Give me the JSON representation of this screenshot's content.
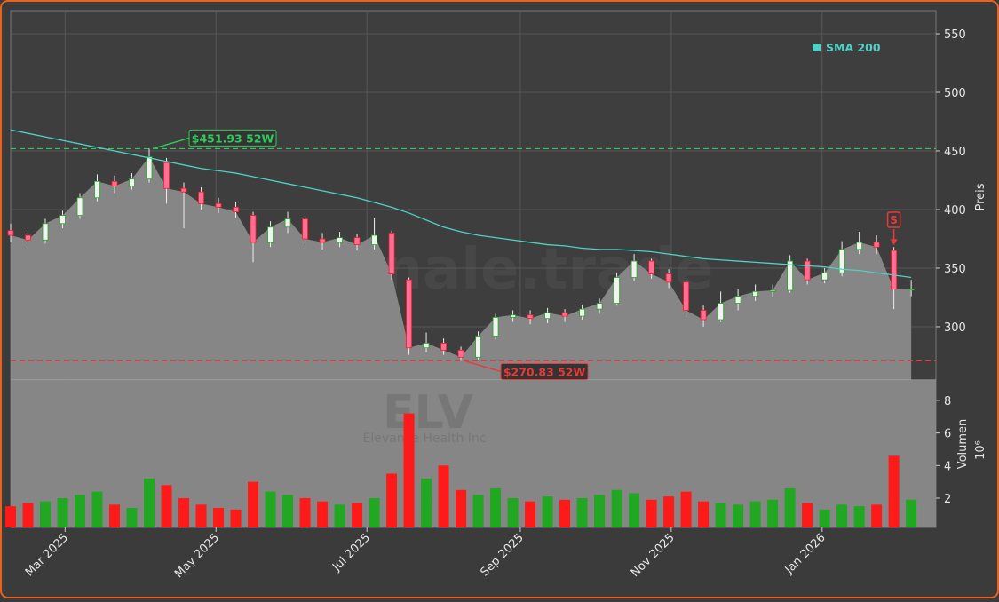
{
  "chart_data": {
    "type": "candlestick",
    "watermark": "forexsignale.trade",
    "ticker": "ELV",
    "company": "Elevance Health Inc",
    "ylabel": "Preis",
    "x": [
      "2025-02-07",
      "2025-02-14",
      "2025-02-21",
      "2025-02-28",
      "2025-03-07",
      "2025-03-14",
      "2025-03-21",
      "2025-03-28",
      "2025-04-04",
      "2025-04-11",
      "2025-04-18",
      "2025-04-25",
      "2025-05-02",
      "2025-05-09",
      "2025-05-16",
      "2025-05-23",
      "2025-05-30",
      "2025-06-06",
      "2025-06-13",
      "2025-06-20",
      "2025-06-27",
      "2025-07-04",
      "2025-07-11",
      "2025-07-18",
      "2025-07-25",
      "2025-08-01",
      "2025-08-08",
      "2025-08-15",
      "2025-08-22",
      "2025-08-29",
      "2025-09-05",
      "2025-09-12",
      "2025-09-19",
      "2025-09-26",
      "2025-10-03",
      "2025-10-10",
      "2025-10-17",
      "2025-10-24",
      "2025-10-31",
      "2025-11-07",
      "2025-11-14",
      "2025-11-21",
      "2025-11-28",
      "2025-12-05",
      "2025-12-12",
      "2025-12-19",
      "2025-12-26",
      "2026-01-02",
      "2026-01-09",
      "2026-01-16",
      "2026-01-23",
      "2026-01-30",
      "2026-02-06"
    ],
    "open": [
      382,
      378,
      374,
      388,
      395,
      410,
      424,
      420,
      426,
      440,
      418,
      415,
      405,
      402,
      395,
      372,
      385,
      392,
      375,
      372,
      376,
      370,
      380,
      340,
      282,
      286,
      280,
      274,
      292,
      308,
      310,
      307,
      312,
      309,
      315,
      320,
      342,
      356,
      345,
      338,
      314,
      306,
      320,
      326,
      330,
      331,
      356,
      340,
      346,
      366,
      372,
      365,
      332
    ],
    "high": [
      388,
      384,
      392,
      399,
      414,
      430,
      429,
      431,
      451.93,
      444,
      423,
      419,
      410,
      406,
      398,
      390,
      398,
      395,
      380,
      381,
      379,
      393,
      382,
      342,
      295,
      290,
      283,
      296,
      311,
      314,
      314,
      316,
      315,
      319,
      324,
      346,
      362,
      358,
      349,
      340,
      318,
      330,
      332,
      336,
      336,
      361,
      358,
      350,
      373,
      381,
      378,
      368,
      340
    ],
    "low": [
      372,
      369,
      371,
      384,
      392,
      407,
      414,
      417,
      423,
      405,
      384,
      400,
      397,
      393,
      355,
      368,
      380,
      368,
      366,
      368,
      365,
      366,
      340,
      276,
      278,
      276,
      270.83,
      272,
      289,
      304,
      302,
      303,
      304,
      306,
      311,
      318,
      339,
      341,
      333,
      308,
      300,
      304,
      314,
      322,
      325,
      329,
      336,
      337,
      343,
      362,
      362,
      315,
      326
    ],
    "close": [
      378,
      374,
      388,
      395,
      410,
      424,
      420,
      426,
      445,
      418,
      415,
      405,
      402,
      398,
      372,
      385,
      392,
      375,
      372,
      376,
      370,
      378,
      345,
      282,
      286,
      280,
      274,
      292,
      308,
      310,
      307,
      312,
      309,
      315,
      320,
      342,
      356,
      345,
      338,
      314,
      306,
      320,
      326,
      330,
      331,
      356,
      340,
      346,
      366,
      372,
      368,
      332,
      332
    ],
    "up_color": "#22a722",
    "down_color": "#ff1a1a",
    "sma": {
      "name": "SMA 200",
      "color": "#4fd1c5",
      "values": [
        468,
        465,
        462,
        459,
        456,
        453,
        450,
        447,
        444,
        441,
        438,
        435,
        433,
        431,
        428,
        425,
        422,
        419,
        416,
        413,
        410,
        406,
        402,
        397,
        391,
        385,
        381,
        378,
        376,
        374,
        372,
        370,
        369,
        367,
        366,
        366,
        365,
        364,
        362,
        360,
        358,
        357,
        356,
        355,
        354,
        353,
        352,
        351,
        349,
        348,
        346,
        344,
        342
      ]
    },
    "high_52w": {
      "value": 451.93,
      "label": "$451.93 52W",
      "color": "#2ecc5a"
    },
    "low_52w": {
      "value": 270.83,
      "label": "$270.83 52W",
      "color": "#e83a3a"
    },
    "signal": "S",
    "xlim": [
      "2025-02-07",
      "2026-02-16"
    ],
    "xticks": [
      {
        "value": "2025-03-01",
        "label": "Mar 2025"
      },
      {
        "value": "2025-05-01",
        "label": "May 2025"
      },
      {
        "value": "2025-07-01",
        "label": "Jul 2025"
      },
      {
        "value": "2025-09-01",
        "label": "Sep 2025"
      },
      {
        "value": "2025-11-01",
        "label": "Nov 2025"
      },
      {
        "value": "2026-01-01",
        "label": "Jan 2026"
      }
    ],
    "ylim": [
      254.5,
      569.7
    ],
    "yticks": [
      300,
      350,
      400,
      450,
      500,
      550
    ],
    "grid": true,
    "volume": {
      "label": "Volumen",
      "offset_label": "10⁶",
      "values": [
        1.5,
        1.7,
        1.8,
        2.0,
        2.2,
        2.4,
        1.6,
        1.4,
        3.2,
        2.8,
        2.0,
        1.6,
        1.4,
        1.3,
        3.0,
        2.4,
        2.2,
        2.0,
        1.8,
        1.6,
        1.7,
        2.0,
        3.5,
        7.2,
        3.2,
        4.0,
        2.5,
        2.2,
        2.6,
        2.0,
        1.8,
        2.1,
        1.9,
        2.0,
        2.2,
        2.5,
        2.3,
        1.9,
        2.1,
        2.4,
        1.8,
        1.7,
        1.6,
        1.8,
        1.9,
        2.6,
        1.7,
        1.3,
        1.6,
        1.5,
        1.6,
        4.6,
        1.9
      ],
      "ylim": [
        0.2,
        9.25
      ],
      "yticks": [
        2,
        4,
        6,
        8
      ]
    }
  }
}
